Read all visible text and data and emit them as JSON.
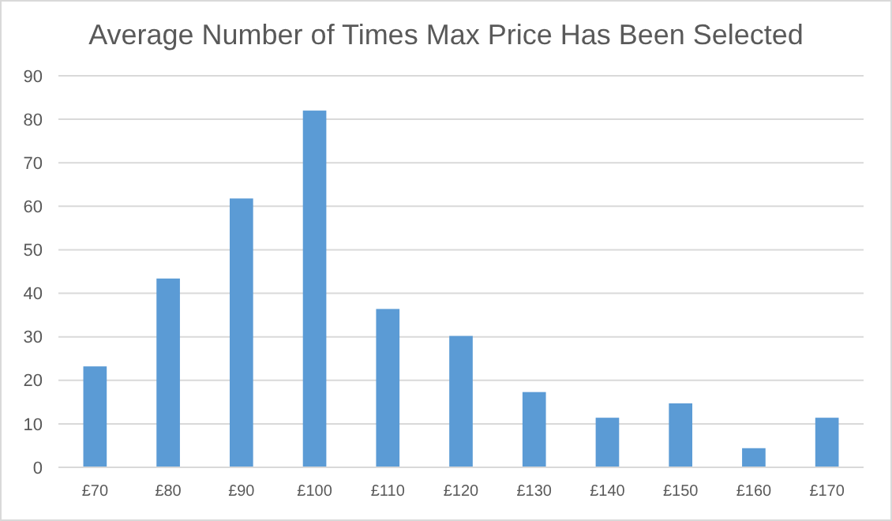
{
  "chart_data": {
    "type": "bar",
    "title": "Average Number of Times Max Price Has Been Selected",
    "categories": [
      "£70",
      "£80",
      "£90",
      "£100",
      "£110",
      "£120",
      "£130",
      "£140",
      "£150",
      "£160",
      "£170"
    ],
    "values": [
      23.2,
      43.4,
      61.8,
      82,
      36.4,
      30.2,
      17.3,
      11.4,
      14.7,
      4.4,
      11.4
    ],
    "color": "#5b9bd5",
    "ylim": [
      0,
      90
    ],
    "yticks": [
      0,
      10,
      20,
      30,
      40,
      50,
      60,
      70,
      80,
      90
    ],
    "grid": "y"
  }
}
